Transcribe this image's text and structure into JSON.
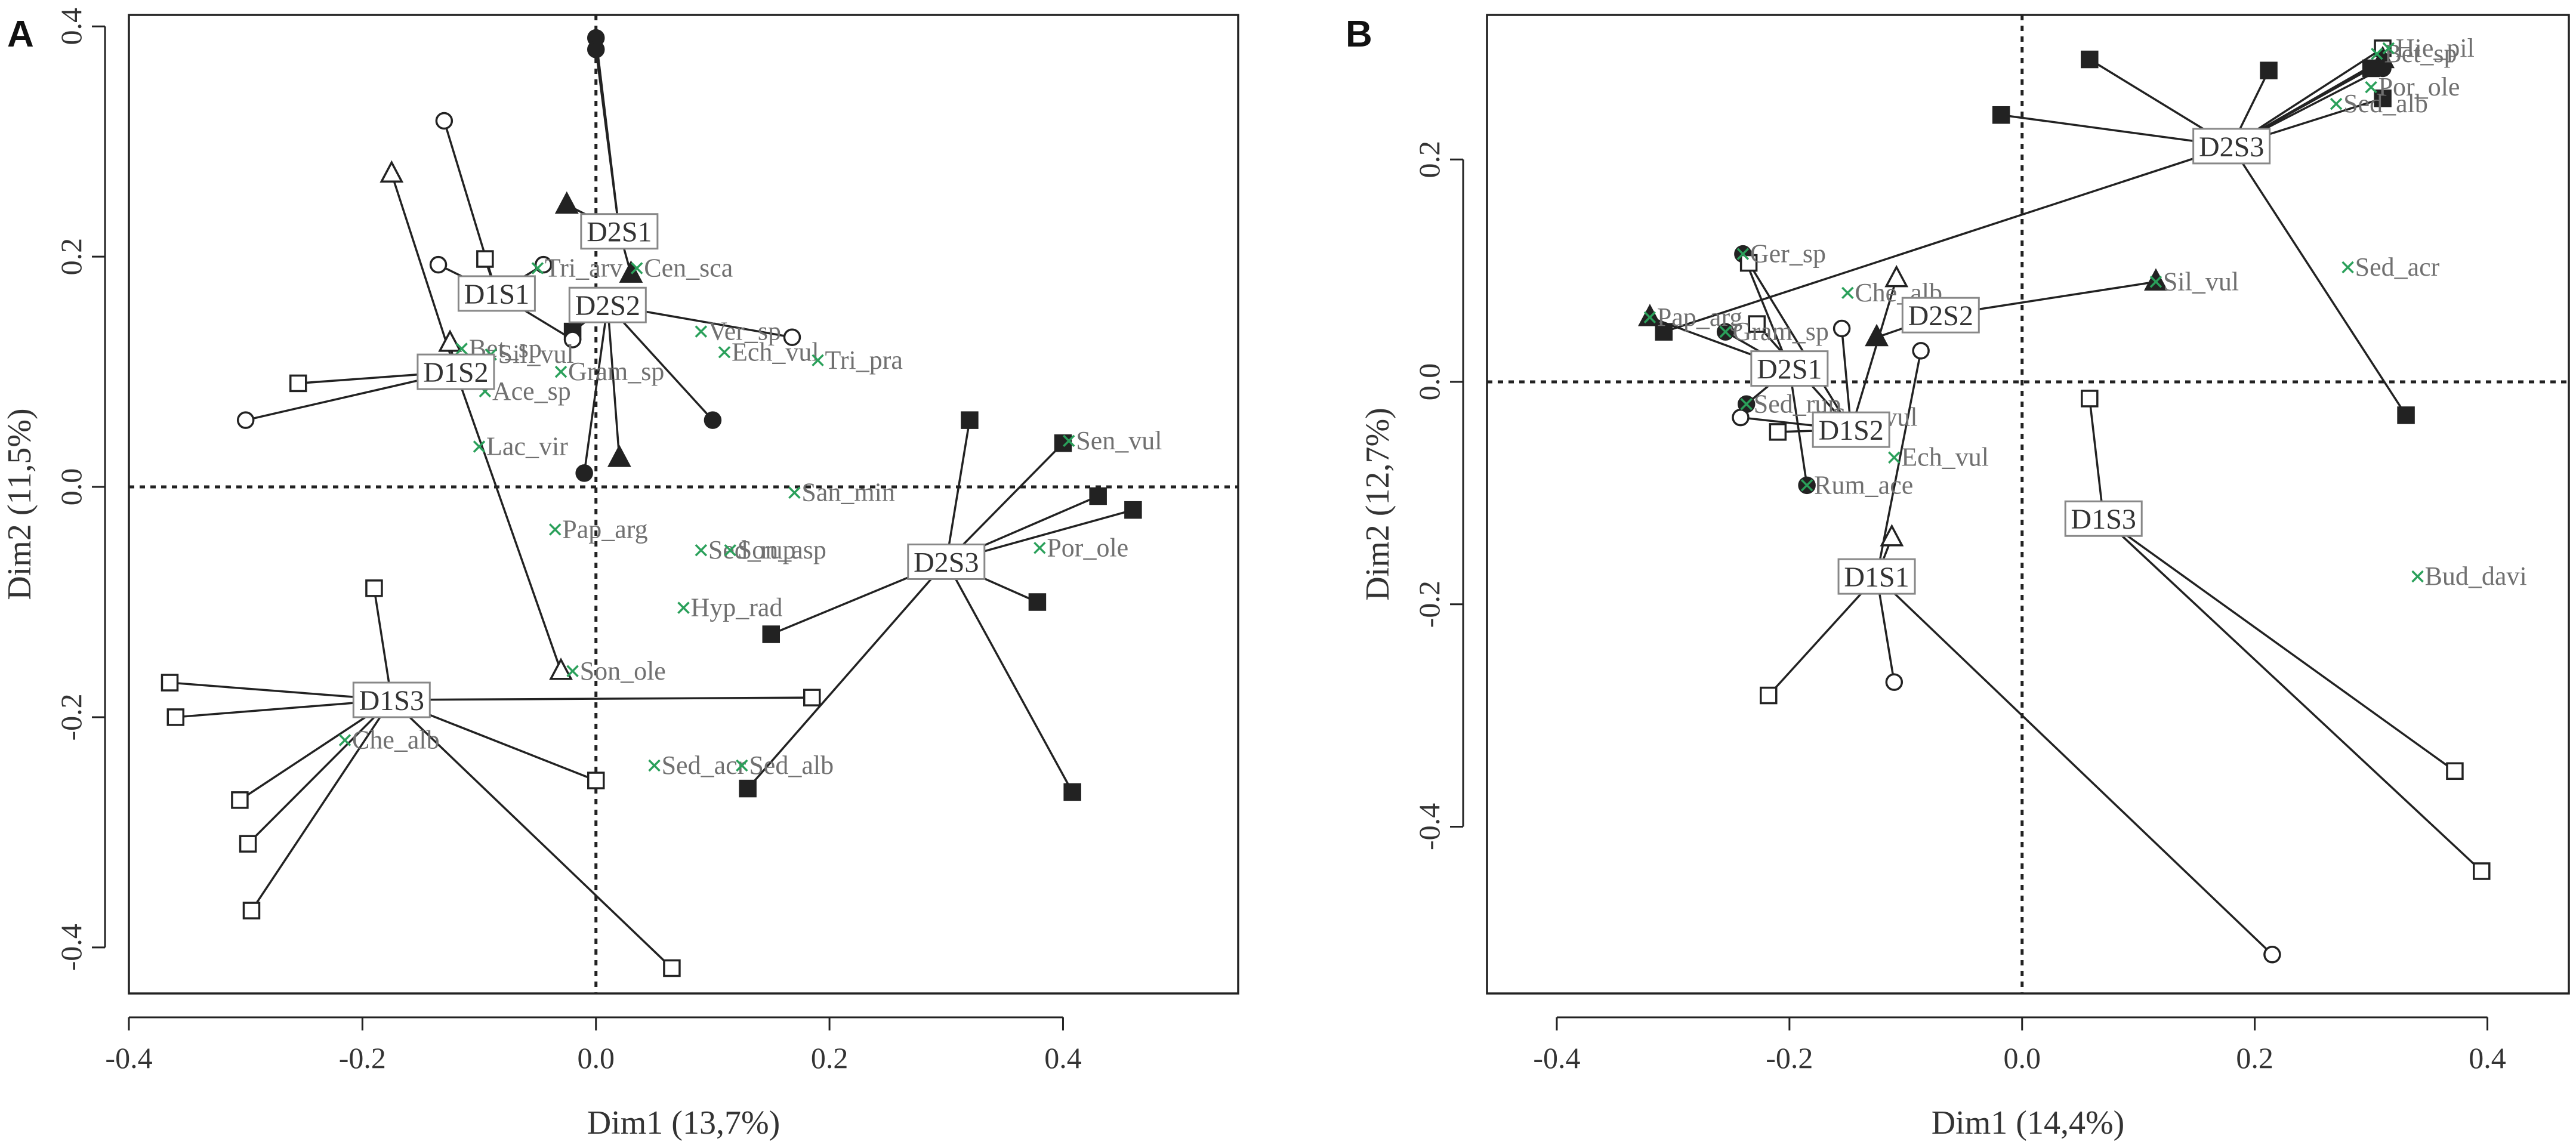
{
  "chart_data": [
    {
      "panel": "A",
      "type": "scatter",
      "xlabel": "Dim1 (13,7%)",
      "ylabel": "Dim2 (11,5%)",
      "xlim": [
        -0.4,
        0.55
      ],
      "ylim": [
        -0.44,
        0.41
      ],
      "xticks": [
        -0.4,
        -0.2,
        0.0,
        0.2,
        0.4
      ],
      "yticks": [
        -0.4,
        -0.2,
        0.0,
        0.2,
        0.4
      ],
      "tick_labels_x": [
        "-0.4",
        "-0.2",
        "0.0",
        "0.2",
        "0.4"
      ],
      "tick_labels_y": [
        "-0.4",
        "-0.2",
        "0.0",
        "0.2",
        "0.4"
      ],
      "reference_lines": {
        "x": 0,
        "y": 0,
        "style": "dotted"
      },
      "centroids": [
        {
          "label": "D2S1",
          "x": 0.02,
          "y": 0.222
        },
        {
          "label": "D1S1",
          "x": -0.085,
          "y": 0.168
        },
        {
          "label": "D2S2",
          "x": 0.01,
          "y": 0.158
        },
        {
          "label": "D1S2",
          "x": -0.12,
          "y": 0.1
        },
        {
          "label": "D1S3",
          "x": -0.175,
          "y": -0.185
        },
        {
          "label": "D2S3",
          "x": 0.3,
          "y": -0.065
        }
      ],
      "sites": [
        {
          "x": 0.0,
          "y": 0.39,
          "marker": "filled-circle",
          "group": "D2S1"
        },
        {
          "x": 0.0,
          "y": 0.38,
          "marker": "filled-circle",
          "group": "D2S1"
        },
        {
          "x": -0.025,
          "y": 0.245,
          "marker": "filled-triangle",
          "group": "D2S1"
        },
        {
          "x": 0.03,
          "y": 0.185,
          "marker": "filled-triangle",
          "group": "D2S1"
        },
        {
          "x": 0.1,
          "y": 0.058,
          "marker": "filled-circle",
          "group": "D2S2"
        },
        {
          "x": -0.01,
          "y": 0.012,
          "marker": "filled-circle",
          "group": "D2S2"
        },
        {
          "x": 0.02,
          "y": 0.025,
          "marker": "filled-triangle",
          "group": "D2S2"
        },
        {
          "x": 0.168,
          "y": 0.13,
          "marker": "open-circle",
          "group": "D2S2"
        },
        {
          "x": -0.02,
          "y": 0.135,
          "marker": "filled-square",
          "group": "D2S2"
        },
        {
          "x": -0.13,
          "y": 0.318,
          "marker": "open-circle",
          "group": "D1S1"
        },
        {
          "x": -0.135,
          "y": 0.193,
          "marker": "open-circle",
          "group": "D1S1"
        },
        {
          "x": -0.095,
          "y": 0.198,
          "marker": "open-square",
          "group": "D1S1"
        },
        {
          "x": -0.045,
          "y": 0.193,
          "marker": "open-circle",
          "group": "D1S1"
        },
        {
          "x": -0.02,
          "y": 0.128,
          "marker": "open-circle",
          "group": "D1S1"
        },
        {
          "x": -0.175,
          "y": 0.272,
          "marker": "open-triangle",
          "group": "D1S2"
        },
        {
          "x": -0.125,
          "y": 0.125,
          "marker": "open-triangle",
          "group": "D1S2"
        },
        {
          "x": -0.3,
          "y": 0.058,
          "marker": "open-circle",
          "group": "D1S2"
        },
        {
          "x": -0.255,
          "y": 0.09,
          "marker": "open-square",
          "group": "D1S2"
        },
        {
          "x": -0.03,
          "y": -0.16,
          "marker": "open-triangle",
          "group": "D1S2"
        },
        {
          "x": -0.365,
          "y": -0.17,
          "marker": "open-square",
          "group": "D1S3"
        },
        {
          "x": -0.36,
          "y": -0.2,
          "marker": "open-square",
          "group": "D1S3"
        },
        {
          "x": -0.305,
          "y": -0.272,
          "marker": "open-square",
          "group": "D1S3"
        },
        {
          "x": -0.298,
          "y": -0.31,
          "marker": "open-square",
          "group": "D1S3"
        },
        {
          "x": -0.295,
          "y": -0.368,
          "marker": "open-square",
          "group": "D1S3"
        },
        {
          "x": -0.19,
          "y": -0.088,
          "marker": "open-square",
          "group": "D1S3"
        },
        {
          "x": 0.0,
          "y": -0.255,
          "marker": "open-square",
          "group": "D1S3"
        },
        {
          "x": 0.065,
          "y": -0.418,
          "marker": "open-square",
          "group": "D1S3"
        },
        {
          "x": 0.185,
          "y": -0.183,
          "marker": "open-square",
          "group": "D1S3"
        },
        {
          "x": 0.32,
          "y": 0.058,
          "marker": "filled-square",
          "group": "D2S3"
        },
        {
          "x": 0.4,
          "y": 0.038,
          "marker": "filled-square",
          "group": "D2S3"
        },
        {
          "x": 0.43,
          "y": -0.008,
          "marker": "filled-square",
          "group": "D2S3"
        },
        {
          "x": 0.46,
          "y": -0.02,
          "marker": "filled-square",
          "group": "D2S3"
        },
        {
          "x": 0.378,
          "y": -0.1,
          "marker": "filled-square",
          "group": "D2S3"
        },
        {
          "x": 0.15,
          "y": -0.128,
          "marker": "filled-square",
          "group": "D2S3"
        },
        {
          "x": 0.13,
          "y": -0.262,
          "marker": "filled-square",
          "group": "D2S3"
        },
        {
          "x": 0.408,
          "y": -0.265,
          "marker": "filled-square",
          "group": "D2S3"
        }
      ],
      "species": [
        {
          "label": "Tri_arv",
          "x": -0.05,
          "y": 0.19
        },
        {
          "label": "Cen_sca",
          "x": 0.035,
          "y": 0.19
        },
        {
          "label": "Ver_sp",
          "x": 0.09,
          "y": 0.135
        },
        {
          "label": "Bet_sp",
          "x": -0.115,
          "y": 0.12
        },
        {
          "label": "Sil_vul",
          "x": -0.09,
          "y": 0.115
        },
        {
          "label": "Ech_vul",
          "x": 0.11,
          "y": 0.117
        },
        {
          "label": "Tri_pra",
          "x": 0.19,
          "y": 0.11
        },
        {
          "label": "Gram_sp",
          "x": -0.03,
          "y": 0.1
        },
        {
          "label": "Ace_sp",
          "x": -0.095,
          "y": 0.083
        },
        {
          "label": "Lac_vir",
          "x": -0.1,
          "y": 0.035
        },
        {
          "label": "Sen_vul",
          "x": 0.405,
          "y": 0.04
        },
        {
          "label": "San_min",
          "x": 0.17,
          "y": -0.005
        },
        {
          "label": "Pap_arg",
          "x": -0.035,
          "y": -0.037
        },
        {
          "label": "Sed_rup",
          "x": 0.09,
          "y": -0.055
        },
        {
          "label": "Son_asp",
          "x": 0.115,
          "y": -0.055
        },
        {
          "label": "Por_ole",
          "x": 0.38,
          "y": -0.053
        },
        {
          "label": "Hyp_rad",
          "x": 0.075,
          "y": -0.105
        },
        {
          "label": "Son_ole",
          "x": -0.02,
          "y": -0.16
        },
        {
          "label": "Che_alb",
          "x": -0.215,
          "y": -0.22
        },
        {
          "label": "Sed_acr",
          "x": 0.05,
          "y": -0.242
        },
        {
          "label": "Sed_alb",
          "x": 0.125,
          "y": -0.242
        }
      ]
    },
    {
      "panel": "B",
      "type": "scatter",
      "xlabel": "Dim1 (14,4%)",
      "ylabel": "Dim2 (12,7%)",
      "xlim": [
        -0.46,
        0.47
      ],
      "ylim": [
        -0.55,
        0.33
      ],
      "xticks": [
        -0.4,
        -0.2,
        0.0,
        0.2,
        0.4
      ],
      "yticks": [
        -0.4,
        -0.2,
        0.0,
        0.2
      ],
      "tick_labels_x": [
        "-0.4",
        "-0.2",
        "0.0",
        "0.2",
        "0.4"
      ],
      "tick_labels_y": [
        "-0.4",
        "-0.2",
        "0.0",
        "0.2"
      ],
      "reference_lines": {
        "x": 0,
        "y": 0,
        "style": "dotted"
      },
      "centroids": [
        {
          "label": "D2S3",
          "x": 0.18,
          "y": 0.212
        },
        {
          "label": "D2S2",
          "x": -0.07,
          "y": 0.06
        },
        {
          "label": "D2S1",
          "x": -0.2,
          "y": 0.012
        },
        {
          "label": "D1S2",
          "x": -0.147,
          "y": -0.043
        },
        {
          "label": "D1S3",
          "x": 0.07,
          "y": -0.123
        },
        {
          "label": "D1S1",
          "x": -0.125,
          "y": -0.175
        }
      ],
      "sites": [
        {
          "x": 0.058,
          "y": 0.29,
          "marker": "filled-square",
          "group": "D2S3"
        },
        {
          "x": 0.212,
          "y": 0.28,
          "marker": "filled-square",
          "group": "D2S3"
        },
        {
          "x": -0.018,
          "y": 0.24,
          "marker": "filled-square",
          "group": "D2S3"
        },
        {
          "x": 0.31,
          "y": 0.255,
          "marker": "filled-square",
          "group": "D2S3"
        },
        {
          "x": 0.3,
          "y": 0.282,
          "marker": "filled-square",
          "group": "D2S3"
        },
        {
          "x": 0.31,
          "y": 0.3,
          "marker": "open-square",
          "group": "D2S3"
        },
        {
          "x": 0.31,
          "y": 0.29,
          "marker": "filled-triangle",
          "group": "D2S3"
        },
        {
          "x": 0.31,
          "y": 0.282,
          "marker": "filled-circle",
          "group": "D2S3"
        },
        {
          "x": 0.33,
          "y": -0.03,
          "marker": "filled-square",
          "group": "D2S3"
        },
        {
          "x": -0.308,
          "y": 0.045,
          "marker": "filled-square",
          "group": "D2S3"
        },
        {
          "x": 0.115,
          "y": 0.09,
          "marker": "filled-triangle",
          "group": "D2S2"
        },
        {
          "x": -0.125,
          "y": 0.04,
          "marker": "filled-triangle",
          "group": "D2S2"
        },
        {
          "x": -0.32,
          "y": 0.058,
          "marker": "filled-triangle",
          "group": "D2S1"
        },
        {
          "x": -0.255,
          "y": 0.045,
          "marker": "filled-circle",
          "group": "D2S1"
        },
        {
          "x": -0.24,
          "y": 0.115,
          "marker": "filled-circle",
          "group": "D2S1"
        },
        {
          "x": -0.237,
          "y": -0.02,
          "marker": "filled-circle",
          "group": "D2S1"
        },
        {
          "x": -0.185,
          "y": -0.093,
          "marker": "filled-circle",
          "group": "D2S1"
        },
        {
          "x": -0.235,
          "y": 0.107,
          "marker": "open-square",
          "group": "D1S2"
        },
        {
          "x": -0.228,
          "y": 0.052,
          "marker": "open-square",
          "group": "D1S2"
        },
        {
          "x": -0.108,
          "y": 0.093,
          "marker": "open-triangle",
          "group": "D1S2"
        },
        {
          "x": -0.155,
          "y": 0.048,
          "marker": "open-circle",
          "group": "D1S2"
        },
        {
          "x": -0.242,
          "y": -0.032,
          "marker": "open-circle",
          "group": "D1S2"
        },
        {
          "x": -0.21,
          "y": -0.045,
          "marker": "open-square",
          "group": "D1S2"
        },
        {
          "x": -0.087,
          "y": 0.028,
          "marker": "open-circle",
          "group": "D1S1"
        },
        {
          "x": -0.112,
          "y": -0.14,
          "marker": "open-triangle",
          "group": "D1S1"
        },
        {
          "x": -0.218,
          "y": -0.282,
          "marker": "open-square",
          "group": "D1S1"
        },
        {
          "x": -0.11,
          "y": -0.27,
          "marker": "open-circle",
          "group": "D1S1"
        },
        {
          "x": 0.215,
          "y": -0.515,
          "marker": "open-circle",
          "group": "D1S1"
        },
        {
          "x": 0.058,
          "y": -0.015,
          "marker": "open-square",
          "group": "D1S3"
        },
        {
          "x": 0.372,
          "y": -0.35,
          "marker": "open-square",
          "group": "D1S3"
        },
        {
          "x": 0.395,
          "y": -0.44,
          "marker": "open-square",
          "group": "D1S3"
        }
      ],
      "species": [
        {
          "label": "Bet_sp",
          "x": 0.305,
          "y": 0.295
        },
        {
          "label": "Hie_pil",
          "x": 0.315,
          "y": 0.3
        },
        {
          "label": "Por_ole",
          "x": 0.3,
          "y": 0.265
        },
        {
          "label": "Sed_alb",
          "x": 0.27,
          "y": 0.25
        },
        {
          "label": "Sed_acr",
          "x": 0.28,
          "y": 0.103
        },
        {
          "label": "Ger_sp",
          "x": -0.24,
          "y": 0.115
        },
        {
          "label": "Che_alb",
          "x": -0.15,
          "y": 0.08
        },
        {
          "label": "Sil_vul",
          "x": 0.115,
          "y": 0.09
        },
        {
          "label": "Pap_arg",
          "x": -0.32,
          "y": 0.058
        },
        {
          "label": "Gram_sp",
          "x": -0.255,
          "y": 0.045
        },
        {
          "label": "Sed_rup",
          "x": -0.237,
          "y": -0.02
        },
        {
          "label": "Sen_vul",
          "x": -0.17,
          "y": -0.032
        },
        {
          "label": "Ech_vul",
          "x": -0.11,
          "y": -0.068
        },
        {
          "label": "Rum_ace",
          "x": -0.185,
          "y": -0.093
        },
        {
          "label": "Bud_davi",
          "x": 0.34,
          "y": -0.175
        }
      ]
    }
  ],
  "colors": {
    "species_marker": "#2aa05a",
    "ink": "#222222",
    "species_text": "#707070"
  }
}
